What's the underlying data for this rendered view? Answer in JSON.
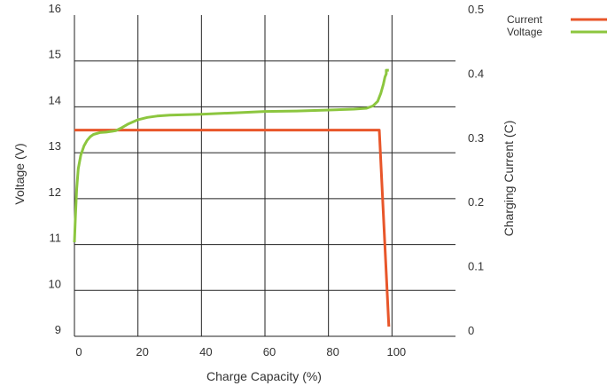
{
  "chart_data": {
    "type": "line",
    "xlabel": "Charge Capacity (%)",
    "ylabel": "Voltage (V)",
    "y2label": "Charging Current (C)",
    "xlim": [
      0,
      120
    ],
    "ylim": [
      9,
      16
    ],
    "y2lim": [
      0,
      0.5
    ],
    "xticks": [
      {
        "value": 0,
        "label": "0"
      },
      {
        "value": 20,
        "label": "20"
      },
      {
        "value": 40,
        "label": "40"
      },
      {
        "value": 60,
        "label": "60"
      },
      {
        "value": 80,
        "label": "80"
      },
      {
        "value": 100,
        "label": "100"
      }
    ],
    "yticks": [
      {
        "value": 9,
        "label": "9"
      },
      {
        "value": 10,
        "label": "10"
      },
      {
        "value": 11,
        "label": "11"
      },
      {
        "value": 12,
        "label": "12"
      },
      {
        "value": 13,
        "label": "13"
      },
      {
        "value": 14,
        "label": "14"
      },
      {
        "value": 15,
        "label": "15"
      },
      {
        "value": 16,
        "label": "16"
      }
    ],
    "y2ticks": [
      {
        "value": 0,
        "label": "0"
      },
      {
        "value": 0.1,
        "label": "0.1"
      },
      {
        "value": 0.2,
        "label": "0.2"
      },
      {
        "value": 0.3,
        "label": "0.3"
      },
      {
        "value": 0.4,
        "label": "0.4"
      },
      {
        "value": 0.5,
        "label": "0.5"
      }
    ],
    "grid": true,
    "legend": "top-right",
    "series": [
      {
        "name": "Current",
        "axis": "right",
        "color": "#e8562a",
        "x": [
          0,
          96,
          99
        ],
        "y": [
          0.321,
          0.321,
          0.015
        ]
      },
      {
        "name": "Voltage",
        "axis": "left",
        "color": "#8cc63f",
        "x": [
          0,
          0.3,
          0.7,
          1.2,
          2,
          3,
          4,
          5,
          6,
          8,
          10,
          13,
          15,
          17,
          20,
          23,
          26,
          30,
          40,
          50,
          60,
          70,
          80,
          88,
          92,
          94,
          95.5,
          96.5,
          97.3,
          97.8,
          98.2,
          98.2,
          99
        ],
        "y": [
          11.05,
          11.6,
          12.2,
          12.65,
          12.95,
          13.15,
          13.27,
          13.35,
          13.4,
          13.44,
          13.45,
          13.48,
          13.55,
          13.63,
          13.72,
          13.77,
          13.8,
          13.82,
          13.84,
          13.87,
          13.9,
          13.91,
          13.93,
          13.95,
          13.97,
          14.02,
          14.12,
          14.3,
          14.5,
          14.65,
          14.72,
          14.8,
          14.8
        ]
      }
    ]
  }
}
